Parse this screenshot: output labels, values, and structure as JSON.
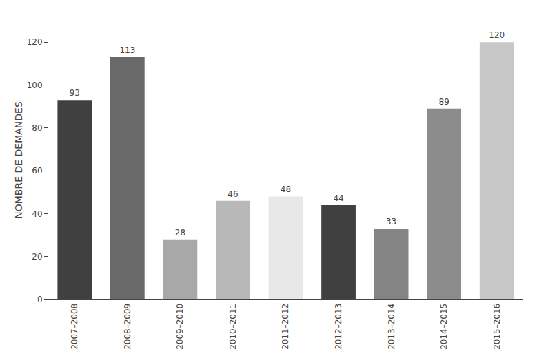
{
  "chart_data": {
    "type": "bar",
    "categories": [
      "2007–2008",
      "2008–2009",
      "2009–2010",
      "2010–2011",
      "2011–2012",
      "2012–2013",
      "2013–2014",
      "2014–2015",
      "2015–2016"
    ],
    "values": [
      93,
      113,
      28,
      46,
      48,
      44,
      33,
      89,
      120
    ],
    "colors": [
      "#404040",
      "#696969",
      "#a8a8a8",
      "#b8b8b8",
      "#e8e8e8",
      "#404040",
      "#848484",
      "#8c8c8c",
      "#c8c8c8"
    ],
    "ylabel": "NOMBRE DE DEMANDES",
    "ylim": [
      0,
      130
    ],
    "yticks": [
      0,
      20,
      40,
      60,
      80,
      100,
      120
    ],
    "grid": false,
    "data_labels": true
  }
}
